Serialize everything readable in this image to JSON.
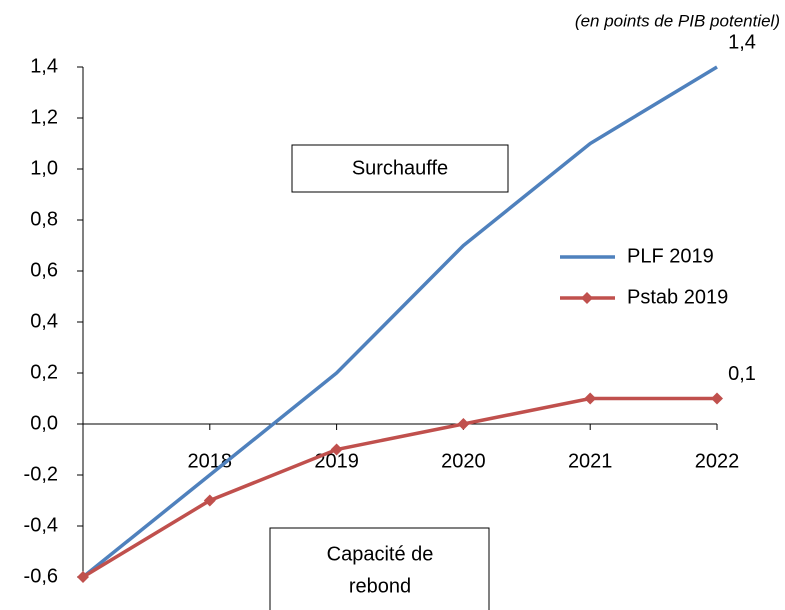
{
  "chart_data": {
    "type": "line",
    "subtitle": "(en points de PIB potentiel)",
    "categories": [
      null,
      "2018",
      "2019",
      "2020",
      "2021",
      "2022"
    ],
    "series": [
      {
        "name": "PLF 2019",
        "color": "#4f81bd",
        "values": [
          -0.6,
          -0.2,
          0.2,
          0.7,
          1.1,
          1.4
        ],
        "value_labels": [
          null,
          null,
          null,
          null,
          null,
          "1,4"
        ]
      },
      {
        "name": "Pstab 2019",
        "color": "#c0504d",
        "values": [
          -0.6,
          -0.3,
          -0.1,
          0.0,
          0.1,
          0.1
        ],
        "value_labels": [
          null,
          null,
          null,
          null,
          null,
          "0,1"
        ],
        "marker": "diamond"
      }
    ],
    "ylim": [
      -0.6,
      1.4
    ],
    "yticks": [
      {
        "value": -0.6,
        "label": "-0,6"
      },
      {
        "value": -0.4,
        "label": "-0,4"
      },
      {
        "value": -0.2,
        "label": "-0,2"
      },
      {
        "value": 0,
        "label": "0,0"
      },
      {
        "value": 0.2,
        "label": "0,2"
      },
      {
        "value": 0.4,
        "label": "0,4"
      },
      {
        "value": 0.6,
        "label": "0,6"
      },
      {
        "value": 0.8,
        "label": "0,8"
      },
      {
        "value": 1.0,
        "label": "1,0"
      },
      {
        "value": 1.2,
        "label": "1,2"
      },
      {
        "value": 1.4,
        "label": "1,4"
      }
    ],
    "annotations": [
      "Surchauffe",
      [
        "Capacité de",
        "rebond"
      ]
    ],
    "grid": false
  }
}
